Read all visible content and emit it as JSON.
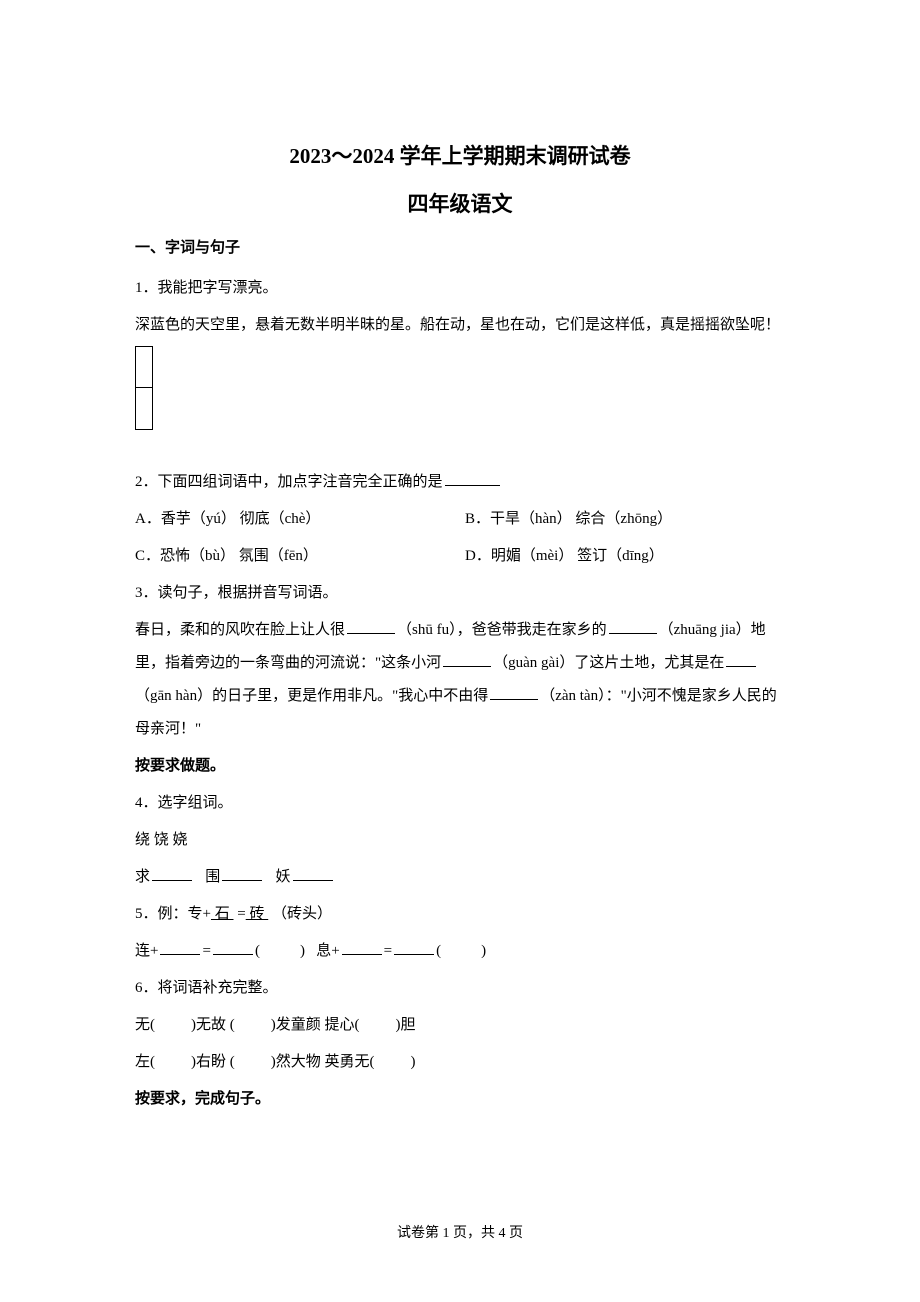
{
  "title_main": "2023～2024 学年上学期期末调研试卷",
  "title_sub": "四年级语文",
  "section1": {
    "heading": "一、字词与句子",
    "q1": {
      "num": "1．我能把字写漂亮。",
      "text": "深蓝色的天空里，悬着无数半明半昧的星。船在动，星也在动，它们是这样低，真是摇摇欲坠呢！"
    },
    "q2": {
      "num": "2．下面四组词语中，加点字注音完全正确的是",
      "optA": "A．香芋（yú）  彻底（chè）",
      "optB": "B．干旱（hàn）  综合（zhōng）",
      "optC": "C．恐怖（bù）  氛围（fēn）",
      "optD": "D．明媚（mèi）  签订（dīng）"
    },
    "q3": {
      "num": "3．读句子，根据拼音写词语。",
      "text1": "春日，柔和的风吹在脸上让人很",
      "pinyin1": "（shū fu），爸爸带我走在家乡的",
      "pinyin2": "（zhuāng jia）地里，指着旁边的一条弯曲的河流说：\"这条小河",
      "pinyin3": "（guàn gài）了这片土地，尤其是在",
      "pinyin4": "（gān hàn）的日子里，更是作用非凡。\"我心中不由得",
      "pinyin5": "（zàn tàn）：\"小河不愧是家乡人民的母亲河！\""
    },
    "sub_heading1": "按要求做题。",
    "q4": {
      "num": "4．选字组词。",
      "chars": "绕   饶   娆",
      "line": "求",
      "line2": "围",
      "line3": "妖"
    },
    "q5": {
      "num_prefix": "5．例：专+",
      "underlined1": " 石 ",
      "eq": "=",
      "underlined2": " 砖 ",
      "example_end": "（砖头）",
      "item1": "连+",
      "item2": "息+"
    },
    "q6": {
      "num": "6．将词语补充完整。",
      "row1_a": "无(",
      "row1_b": ")无故   (",
      "row1_c": ")发童颜   提心(",
      "row1_d": ")胆",
      "row2_a": "左(",
      "row2_b": ")右盼   (",
      "row2_c": ")然大物   英勇无(",
      "row2_d": ")"
    },
    "sub_heading2": "按要求，完成句子。"
  },
  "footer": "试卷第 1 页，共 4 页"
}
